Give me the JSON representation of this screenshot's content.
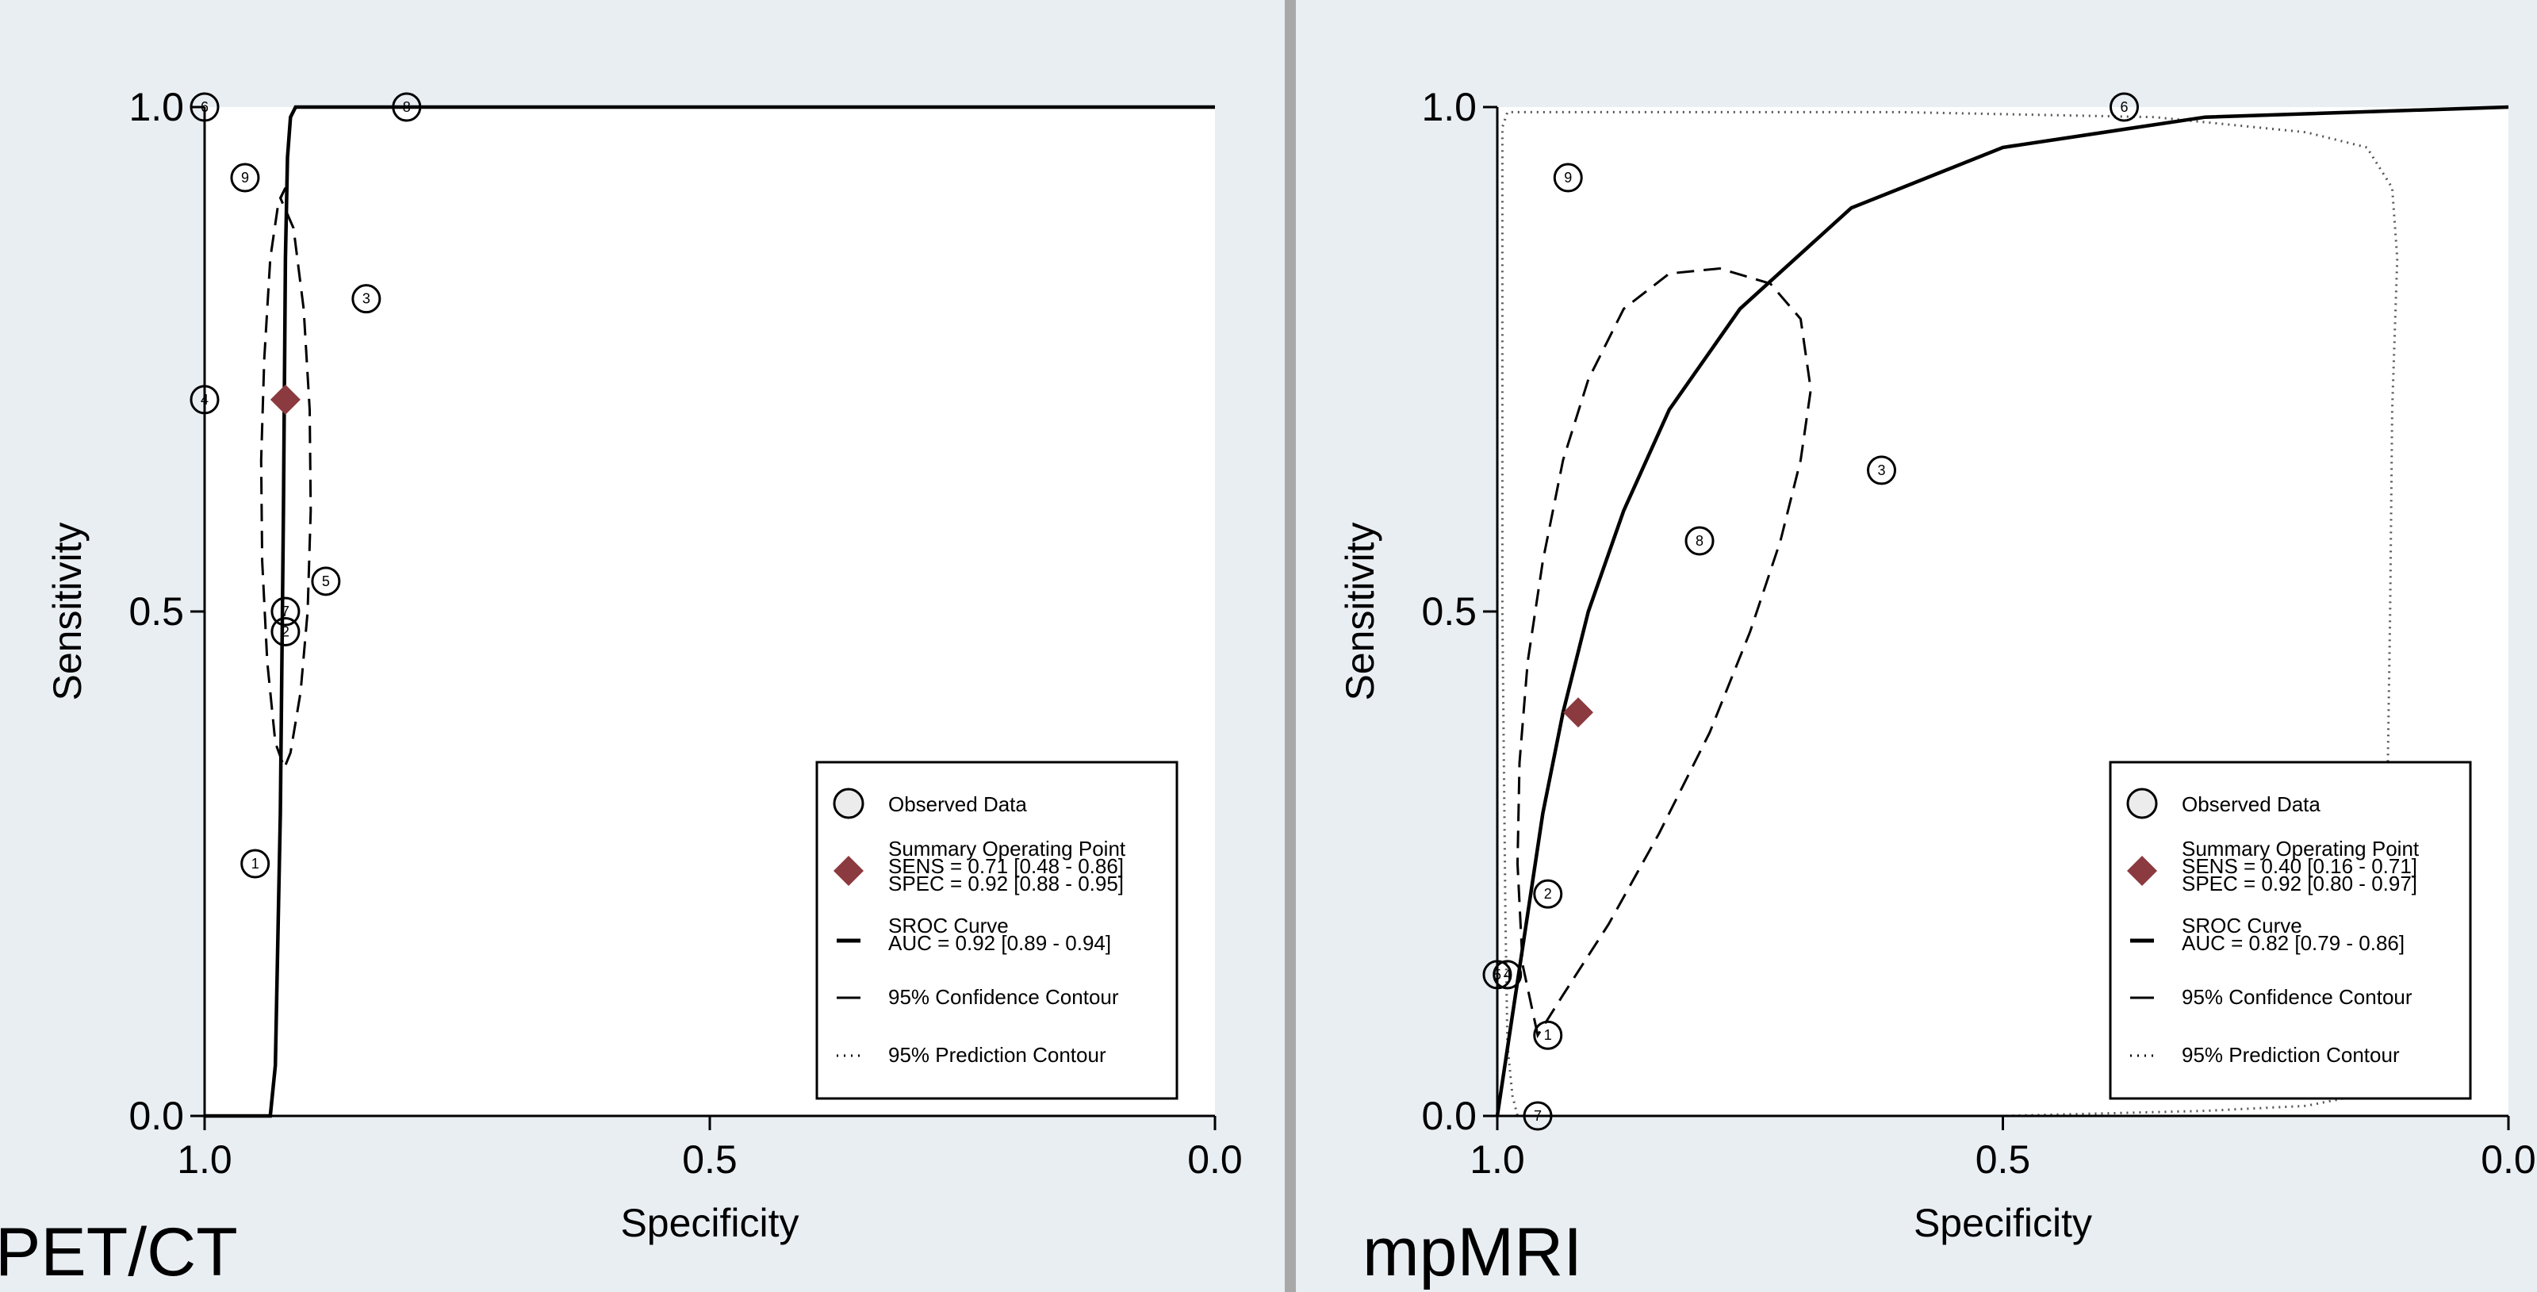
{
  "colors": {
    "background": "#e9eef3",
    "plot_background": "#ffffff",
    "divider": "#a8a8a8",
    "summary_point": "#8b3a3f"
  },
  "chart_data": [
    {
      "type": "scatter",
      "panel_label": "PET/CT",
      "xlabel": "Specificity",
      "ylabel": "Sensitivity",
      "xlim": [
        1.0,
        0.0
      ],
      "ylim": [
        0.0,
        1.0
      ],
      "x_reversed": true,
      "x_tick_labels": [
        "1.0",
        "0.5",
        "0.0"
      ],
      "y_tick_labels": [
        "0.0",
        "0.5",
        "1.0"
      ],
      "observed_data": [
        {
          "label": "1",
          "spec": 0.95,
          "sens": 0.25
        },
        {
          "label": "2",
          "spec": 0.92,
          "sens": 0.48
        },
        {
          "label": "3",
          "spec": 0.84,
          "sens": 0.81
        },
        {
          "label": "4",
          "spec": 1.0,
          "sens": 0.71
        },
        {
          "label": "5",
          "spec": 0.88,
          "sens": 0.53
        },
        {
          "label": "6",
          "spec": 1.0,
          "sens": 1.0
        },
        {
          "label": "7",
          "spec": 0.92,
          "sens": 0.5
        },
        {
          "label": "8",
          "spec": 0.8,
          "sens": 1.0
        },
        {
          "label": "9",
          "spec": 0.96,
          "sens": 0.93
        }
      ],
      "summary_point": {
        "spec": 0.92,
        "sens": 0.71
      },
      "sroc_curve": [
        [
          1.0,
          0.0
        ],
        [
          0.935,
          0.0
        ],
        [
          0.93,
          0.05
        ],
        [
          0.925,
          0.3
        ],
        [
          0.922,
          0.6
        ],
        [
          0.92,
          0.85
        ],
        [
          0.918,
          0.95
        ],
        [
          0.915,
          0.99
        ],
        [
          0.91,
          1.0
        ],
        [
          0.0,
          1.0
        ]
      ],
      "confidence_contour": [
        [
          0.92,
          0.92
        ],
        [
          0.925,
          0.91
        ],
        [
          0.912,
          0.88
        ],
        [
          0.902,
          0.8
        ],
        [
          0.896,
          0.7
        ],
        [
          0.895,
          0.6
        ],
        [
          0.898,
          0.5
        ],
        [
          0.905,
          0.42
        ],
        [
          0.915,
          0.36
        ],
        [
          0.921,
          0.345
        ],
        [
          0.93,
          0.37
        ],
        [
          0.938,
          0.45
        ],
        [
          0.943,
          0.55
        ],
        [
          0.944,
          0.65
        ],
        [
          0.941,
          0.75
        ],
        [
          0.935,
          0.85
        ],
        [
          0.927,
          0.905
        ],
        [
          0.92,
          0.92
        ]
      ],
      "prediction_contour": [],
      "legend": {
        "position": "bottom-right",
        "observed": "Observed Data",
        "summary_title": "Summary Operating Point",
        "sens": "SENS = 0.71 [0.48 - 0.86]",
        "spec": "SPEC = 0.92 [0.88 - 0.95]",
        "sroc_title": "SROC Curve",
        "auc": "AUC = 0.92 [0.89 - 0.94]",
        "confidence": "95% Confidence Contour",
        "prediction": "95% Prediction Contour"
      }
    },
    {
      "type": "scatter",
      "panel_label": "mpMRI",
      "xlabel": "Specificity",
      "ylabel": "Sensitivity",
      "xlim": [
        1.0,
        0.0
      ],
      "ylim": [
        0.0,
        1.0
      ],
      "x_reversed": true,
      "x_tick_labels": [
        "1.0",
        "0.5",
        "0.0"
      ],
      "y_tick_labels": [
        "0.0",
        "0.5",
        "1.0"
      ],
      "observed_data": [
        {
          "label": "1",
          "spec": 0.95,
          "sens": 0.08
        },
        {
          "label": "2",
          "spec": 0.95,
          "sens": 0.22
        },
        {
          "label": "3",
          "spec": 0.62,
          "sens": 0.64
        },
        {
          "label": "4",
          "spec": 0.99,
          "sens": 0.14
        },
        {
          "label": "5",
          "spec": 1.0,
          "sens": 0.14
        },
        {
          "label": "6",
          "spec": 0.38,
          "sens": 1.0
        },
        {
          "label": "7",
          "spec": 0.96,
          "sens": 0.0
        },
        {
          "label": "8",
          "spec": 0.8,
          "sens": 0.57
        },
        {
          "label": "9",
          "spec": 0.93,
          "sens": 0.93
        }
      ],
      "summary_point": {
        "spec": 0.92,
        "sens": 0.4
      },
      "sroc_curve": [
        [
          1.0,
          0.0
        ],
        [
          0.985,
          0.1
        ],
        [
          0.97,
          0.2
        ],
        [
          0.955,
          0.3
        ],
        [
          0.935,
          0.4
        ],
        [
          0.91,
          0.5
        ],
        [
          0.875,
          0.6
        ],
        [
          0.83,
          0.7
        ],
        [
          0.76,
          0.8
        ],
        [
          0.65,
          0.9
        ],
        [
          0.5,
          0.96
        ],
        [
          0.3,
          0.99
        ],
        [
          0.0,
          1.0
        ]
      ],
      "confidence_contour": [
        [
          0.96,
          0.08
        ],
        [
          0.975,
          0.15
        ],
        [
          0.98,
          0.25
        ],
        [
          0.978,
          0.35
        ],
        [
          0.97,
          0.45
        ],
        [
          0.955,
          0.55
        ],
        [
          0.935,
          0.65
        ],
        [
          0.91,
          0.73
        ],
        [
          0.875,
          0.8
        ],
        [
          0.83,
          0.835
        ],
        [
          0.78,
          0.84
        ],
        [
          0.73,
          0.825
        ],
        [
          0.7,
          0.79
        ],
        [
          0.69,
          0.72
        ],
        [
          0.7,
          0.65
        ],
        [
          0.72,
          0.57
        ],
        [
          0.75,
          0.48
        ],
        [
          0.79,
          0.38
        ],
        [
          0.84,
          0.28
        ],
        [
          0.89,
          0.19
        ],
        [
          0.935,
          0.12
        ],
        [
          0.96,
          0.08
        ]
      ],
      "prediction_contour": [
        [
          0.98,
          0.0
        ],
        [
          0.5,
          0.0
        ],
        [
          0.3,
          0.005
        ],
        [
          0.2,
          0.01
        ],
        [
          0.15,
          0.02
        ],
        [
          0.12,
          0.1
        ],
        [
          0.12,
          0.3
        ],
        [
          0.117,
          0.5
        ],
        [
          0.115,
          0.7
        ],
        [
          0.11,
          0.85
        ],
        [
          0.115,
          0.92
        ],
        [
          0.14,
          0.96
        ],
        [
          0.2,
          0.975
        ],
        [
          0.35,
          0.99
        ],
        [
          0.6,
          0.995
        ],
        [
          0.99,
          0.995
        ],
        [
          0.995,
          0.98
        ],
        [
          0.995,
          0.5
        ],
        [
          0.992,
          0.2
        ],
        [
          0.99,
          0.07
        ],
        [
          0.985,
          0.02
        ],
        [
          0.98,
          0.0
        ]
      ],
      "legend": {
        "position": "bottom-right",
        "observed": "Observed Data",
        "summary_title": "Summary Operating Point",
        "sens": "SENS = 0.40 [0.16 - 0.71]",
        "spec": "SPEC = 0.92 [0.80 - 0.97]",
        "sroc_title": "SROC Curve",
        "auc": "AUC = 0.82 [0.79 - 0.86]",
        "confidence": "95% Confidence Contour",
        "prediction": "95% Prediction Contour"
      }
    }
  ]
}
